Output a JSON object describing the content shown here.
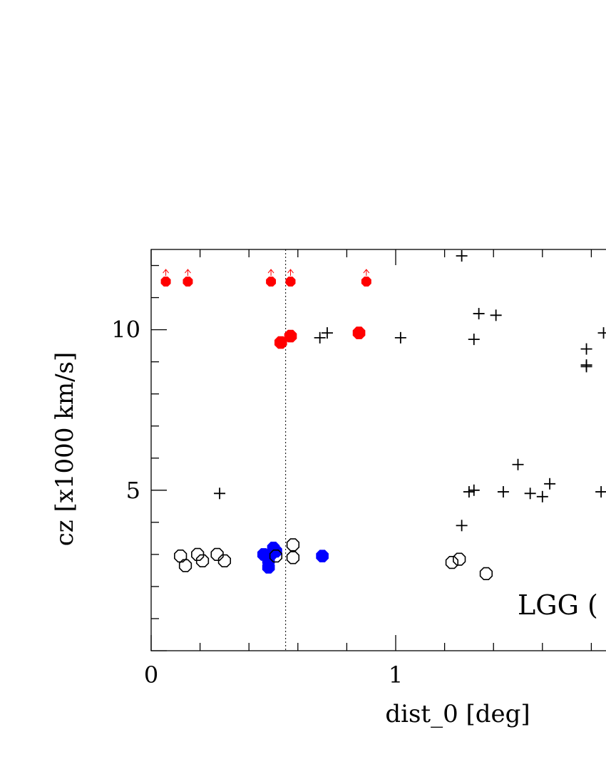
{
  "chart_data": {
    "type": "scatter",
    "title": "",
    "xlabel": "dist_0 [deg]",
    "ylabel": "cz [x1000 km/s]",
    "xlim": [
      0,
      1.86
    ],
    "ylim": [
      0,
      12.5
    ],
    "x_ticks": [
      0,
      1
    ],
    "y_ticks": [
      5,
      10
    ],
    "annotation": "LGG (",
    "reference_line_x": 0.55,
    "grid": false,
    "colors": {
      "red": "#ff0000",
      "blue": "#0000ff",
      "black": "#000000"
    },
    "series": [
      {
        "marker": "red-filled-circle-upper-limit",
        "points": [
          {
            "x": 0.06,
            "y": 11.5
          },
          {
            "x": 0.15,
            "y": 11.5
          },
          {
            "x": 0.49,
            "y": 11.5
          },
          {
            "x": 0.57,
            "y": 11.5
          },
          {
            "x": 0.88,
            "y": 11.5
          }
        ]
      },
      {
        "marker": "red-filled-circle",
        "points": [
          {
            "x": 0.53,
            "y": 9.6
          },
          {
            "x": 0.57,
            "y": 9.8
          },
          {
            "x": 0.85,
            "y": 9.9
          }
        ]
      },
      {
        "marker": "blue-filled-circle",
        "points": [
          {
            "x": 0.46,
            "y": 3.0
          },
          {
            "x": 0.48,
            "y": 2.8
          },
          {
            "x": 0.49,
            "y": 3.0
          },
          {
            "x": 0.5,
            "y": 3.2
          },
          {
            "x": 0.51,
            "y": 3.1
          },
          {
            "x": 0.48,
            "y": 2.6
          },
          {
            "x": 0.7,
            "y": 2.95
          }
        ]
      },
      {
        "marker": "black-open-octagon",
        "points": [
          {
            "x": 0.12,
            "y": 2.95
          },
          {
            "x": 0.14,
            "y": 2.65
          },
          {
            "x": 0.19,
            "y": 3.0
          },
          {
            "x": 0.21,
            "y": 2.8
          },
          {
            "x": 0.27,
            "y": 3.0
          },
          {
            "x": 0.3,
            "y": 2.8
          },
          {
            "x": 0.51,
            "y": 2.95
          },
          {
            "x": 0.58,
            "y": 3.3
          },
          {
            "x": 0.58,
            "y": 2.9
          },
          {
            "x": 1.23,
            "y": 2.75
          },
          {
            "x": 1.26,
            "y": 2.85
          },
          {
            "x": 1.37,
            "y": 2.4
          }
        ]
      },
      {
        "marker": "black-plus",
        "points": [
          {
            "x": 0.28,
            "y": 4.9
          },
          {
            "x": 0.69,
            "y": 9.75
          },
          {
            "x": 0.72,
            "y": 9.9
          },
          {
            "x": 1.02,
            "y": 9.75
          },
          {
            "x": 1.27,
            "y": 12.3
          },
          {
            "x": 1.32,
            "y": 9.7
          },
          {
            "x": 1.34,
            "y": 10.5
          },
          {
            "x": 1.41,
            "y": 10.45
          },
          {
            "x": 1.3,
            "y": 4.95
          },
          {
            "x": 1.32,
            "y": 5.0
          },
          {
            "x": 1.44,
            "y": 4.95
          },
          {
            "x": 1.5,
            "y": 5.8
          },
          {
            "x": 1.55,
            "y": 4.9
          },
          {
            "x": 1.6,
            "y": 4.8
          },
          {
            "x": 1.63,
            "y": 5.2
          },
          {
            "x": 1.27,
            "y": 3.9
          },
          {
            "x": 1.78,
            "y": 9.4
          },
          {
            "x": 1.78,
            "y": 8.9
          },
          {
            "x": 1.78,
            "y": 8.85
          },
          {
            "x": 1.85,
            "y": 9.9
          },
          {
            "x": 1.84,
            "y": 4.95
          }
        ]
      }
    ]
  }
}
